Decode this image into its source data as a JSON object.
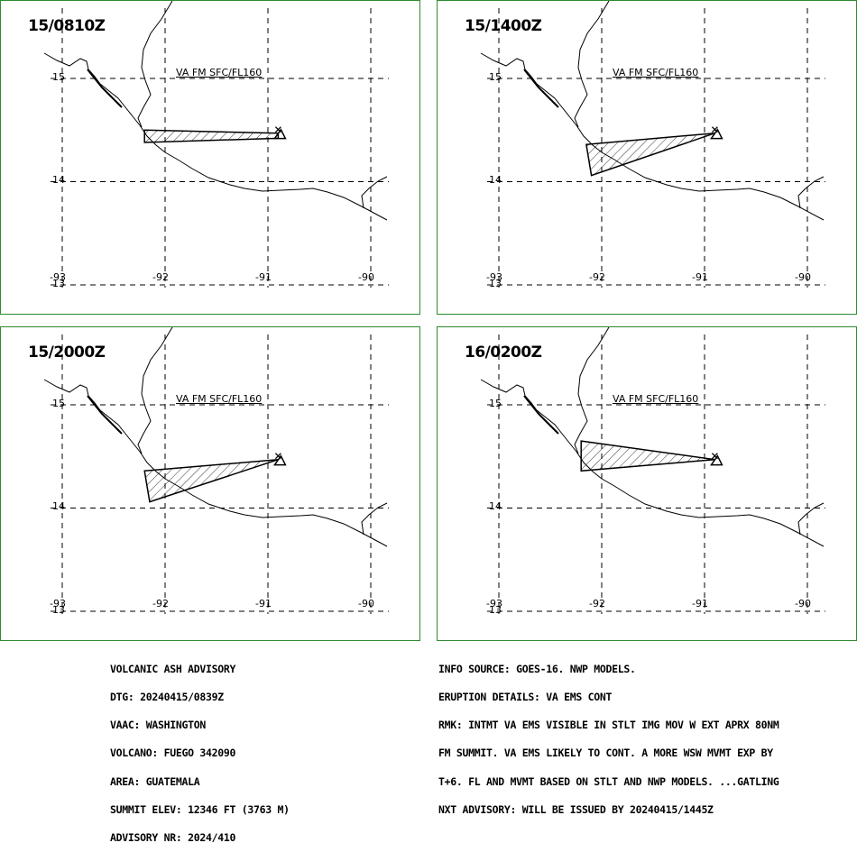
{
  "panels": [
    {
      "time": "15/0810Z",
      "alt": "VA FM SFC/FL160"
    },
    {
      "time": "15/1400Z",
      "alt": "VA FM SFC/FL160"
    },
    {
      "time": "15/2000Z",
      "alt": "VA FM SFC/FL160"
    },
    {
      "time": "16/0200Z",
      "alt": "VA FM SFC/FL160"
    }
  ],
  "lat_labels": [
    "15",
    "14",
    "13"
  ],
  "lon_labels": [
    "-93",
    "-92",
    "-91",
    "-90"
  ],
  "ash_polygons": [
    [
      [
        -92.2,
        14.5
      ],
      [
        -90.9,
        14.47
      ],
      [
        -90.9,
        14.42
      ],
      [
        -92.2,
        14.38
      ]
    ],
    [
      [
        -92.15,
        14.36
      ],
      [
        -90.9,
        14.47
      ],
      [
        -92.1,
        14.06
      ]
    ],
    [
      [
        -92.2,
        14.36
      ],
      [
        -90.9,
        14.47
      ],
      [
        -92.15,
        14.06
      ]
    ],
    [
      [
        -92.2,
        14.65
      ],
      [
        -90.9,
        14.47
      ],
      [
        -92.2,
        14.36
      ]
    ]
  ],
  "volcano_location": [
    -90.9,
    14.47
  ],
  "advisory_left": [
    "VOLCANIC ASH ADVISORY",
    "DTG: 20240415/0839Z",
    "VAAC: WASHINGTON",
    "VOLCANO: FUEGO 342090",
    "AREA: GUATEMALA",
    "SUMMIT ELEV: 12346 FT (3763 M)",
    "ADVISORY NR: 2024/410"
  ],
  "advisory_right": [
    "INFO SOURCE: GOES-16. NWP MODELS.",
    "ERUPTION DETAILS: VA EMS CONT",
    "RMK: INTMT VA EMS VISIBLE IN STLT IMG MOV W EXT APRX 80NM",
    "FM SUMMIT. VA EMS LIKELY TO CONT. A MORE WSW MVMT EXP BY",
    "T+6. FL AND MVMT BASED ON STLT AND NWP MODELS. ...GATLING",
    "NXT ADVISORY: WILL BE ISSUED BY 20240415/1445Z"
  ],
  "colors": {
    "frame": "#2e8b2e",
    "lines": "#000000"
  }
}
